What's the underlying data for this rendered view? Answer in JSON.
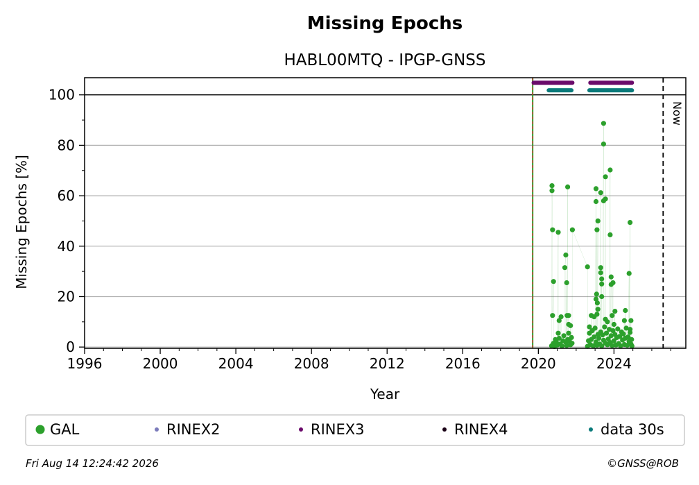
{
  "chart_data": {
    "type": "scatter",
    "title": "Missing Epochs",
    "subtitle": "HABL00MTQ - IPGP-GNSS",
    "xlabel": "Year",
    "ylabel": "Missing Epochs [%]",
    "xlim": [
      1996,
      2027.8
    ],
    "ylim": [
      -0.5,
      106.8
    ],
    "xticks": [
      1996,
      2000,
      2004,
      2008,
      2012,
      2016,
      2020,
      2024
    ],
    "yticks": [
      0,
      20,
      40,
      60,
      80,
      100
    ],
    "grid": "horizontal",
    "reference_line_y": 100,
    "station_start_line_x": 2019.7,
    "now_line": {
      "x": 2026.6,
      "label": "Now"
    },
    "series": [
      {
        "name": "GAL",
        "color": "#2ca02c",
        "points": [
          [
            2020.72,
            64.0
          ],
          [
            2020.72,
            62.0
          ],
          [
            2020.75,
            46.5
          ],
          [
            2020.8,
            26.0
          ],
          [
            2020.75,
            12.5
          ],
          [
            2020.9,
            3.0
          ],
          [
            2021.05,
            45.5
          ],
          [
            2021.05,
            5.5
          ],
          [
            2021.1,
            10.5
          ],
          [
            2021.2,
            12.0
          ],
          [
            2021.4,
            31.5
          ],
          [
            2021.45,
            36.5
          ],
          [
            2021.5,
            25.5
          ],
          [
            2021.55,
            63.5
          ],
          [
            2021.52,
            12.5
          ],
          [
            2021.6,
            12.5
          ],
          [
            2021.6,
            9.0
          ],
          [
            2021.7,
            8.5
          ],
          [
            2021.55,
            3.0
          ],
          [
            2021.8,
            46.5
          ],
          [
            2022.6,
            31.8
          ],
          [
            2022.7,
            8.0
          ],
          [
            2022.8,
            12.5
          ],
          [
            2022.95,
            12.0
          ],
          [
            2023.05,
            62.8
          ],
          [
            2023.05,
            57.7
          ],
          [
            2023.1,
            46.5
          ],
          [
            2023.15,
            50.0
          ],
          [
            2023.08,
            21.0
          ],
          [
            2023.05,
            19.0
          ],
          [
            2023.12,
            17.5
          ],
          [
            2023.15,
            15.0
          ],
          [
            2023.1,
            13.0
          ],
          [
            2023.3,
            61.2
          ],
          [
            2023.3,
            31.5
          ],
          [
            2023.3,
            29.5
          ],
          [
            2023.35,
            27.0
          ],
          [
            2023.35,
            25.0
          ],
          [
            2023.35,
            20.0
          ],
          [
            2023.45,
            88.7
          ],
          [
            2023.45,
            80.5
          ],
          [
            2023.45,
            58.0
          ],
          [
            2023.55,
            58.7
          ],
          [
            2023.55,
            67.5
          ],
          [
            2023.55,
            11.0
          ],
          [
            2023.65,
            10.0
          ],
          [
            2023.8,
            70.2
          ],
          [
            2023.8,
            44.5
          ],
          [
            2023.85,
            27.8
          ],
          [
            2023.85,
            24.8
          ],
          [
            2023.95,
            25.5
          ],
          [
            2023.9,
            12.5
          ],
          [
            2024.05,
            14.2
          ],
          [
            2024.0,
            9.0
          ],
          [
            2024.6,
            14.5
          ],
          [
            2024.55,
            10.5
          ],
          [
            2024.8,
            29.2
          ],
          [
            2024.85,
            49.4
          ],
          [
            2024.9,
            10.5
          ],
          [
            2024.85,
            7.0
          ],
          [
            2020.7,
            0.5
          ],
          [
            2020.8,
            1.5
          ],
          [
            2020.85,
            0.2
          ],
          [
            2020.95,
            2.0
          ],
          [
            2021.0,
            0.8
          ],
          [
            2021.1,
            3.5
          ],
          [
            2021.15,
            1.2
          ],
          [
            2021.25,
            0.4
          ],
          [
            2021.3,
            2.5
          ],
          [
            2021.35,
            4.5
          ],
          [
            2021.45,
            1.8
          ],
          [
            2021.5,
            0.6
          ],
          [
            2021.6,
            5.5
          ],
          [
            2021.65,
            2.2
          ],
          [
            2021.7,
            0.9
          ],
          [
            2021.75,
            3.8
          ],
          [
            2021.78,
            1.5
          ],
          [
            2022.6,
            0.3
          ],
          [
            2022.65,
            2.5
          ],
          [
            2022.7,
            5.5
          ],
          [
            2022.75,
            1.0
          ],
          [
            2022.8,
            3.0
          ],
          [
            2022.85,
            6.5
          ],
          [
            2022.9,
            0.5
          ],
          [
            2022.95,
            4.0
          ],
          [
            2023.0,
            7.5
          ],
          [
            2023.05,
            2.0
          ],
          [
            2023.1,
            0.7
          ],
          [
            2023.15,
            5.0
          ],
          [
            2023.2,
            3.5
          ],
          [
            2023.25,
            1.2
          ],
          [
            2023.3,
            6.0
          ],
          [
            2023.35,
            0.4
          ],
          [
            2023.4,
            4.8
          ],
          [
            2023.45,
            2.7
          ],
          [
            2023.5,
            8.0
          ],
          [
            2023.55,
            1.5
          ],
          [
            2023.6,
            5.5
          ],
          [
            2023.65,
            0.9
          ],
          [
            2023.7,
            3.2
          ],
          [
            2023.75,
            7.0
          ],
          [
            2023.8,
            1.8
          ],
          [
            2023.85,
            4.5
          ],
          [
            2023.9,
            0.6
          ],
          [
            2023.95,
            6.5
          ],
          [
            2024.0,
            2.5
          ],
          [
            2024.05,
            5.0
          ],
          [
            2024.1,
            0.8
          ],
          [
            2024.15,
            3.8
          ],
          [
            2024.2,
            7.2
          ],
          [
            2024.25,
            1.4
          ],
          [
            2024.3,
            4.2
          ],
          [
            2024.35,
            0.5
          ],
          [
            2024.4,
            6.0
          ],
          [
            2024.45,
            2.8
          ],
          [
            2024.5,
            5.2
          ],
          [
            2024.55,
            1.0
          ],
          [
            2024.6,
            3.5
          ],
          [
            2024.65,
            7.5
          ],
          [
            2024.7,
            0.7
          ],
          [
            2024.75,
            4.0
          ],
          [
            2024.8,
            2.2
          ],
          [
            2024.85,
            5.8
          ],
          [
            2024.9,
            1.2
          ],
          [
            2024.93,
            3.0
          ],
          [
            2024.95,
            0.4
          ]
        ]
      },
      {
        "name": "RINEX2",
        "color": "#7b7bbb",
        "segments": []
      },
      {
        "name": "RINEX3",
        "color": "#6a0a6a",
        "y": 104.8,
        "segments": [
          [
            2019.75,
            2021.8
          ],
          [
            2022.75,
            2024.95
          ]
        ]
      },
      {
        "name": "RINEX4",
        "color": "#1a0016",
        "segments": []
      },
      {
        "name": "data 30s",
        "color": "#0a7a7a",
        "y": 101.8,
        "segments": [
          [
            2020.55,
            2021.75
          ],
          [
            2022.7,
            2024.95
          ]
        ]
      }
    ],
    "legend": [
      "GAL",
      "RINEX2",
      "RINEX3",
      "RINEX4",
      "data 30s"
    ],
    "legend_placement": "bottom"
  },
  "footer": {
    "timestamp": "Fri Aug 14 12:24:42 2026",
    "copyright": "©GNSS@ROB"
  }
}
